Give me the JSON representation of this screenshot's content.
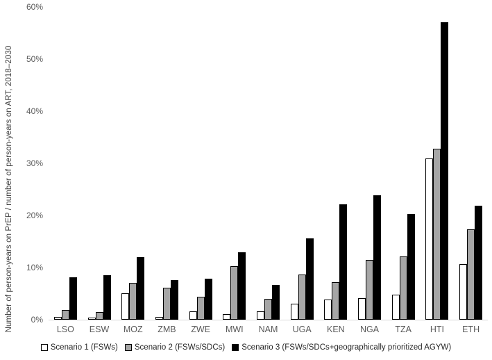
{
  "chart_data": {
    "type": "bar",
    "title": "",
    "xlabel": "",
    "ylabel": "Number of person-years on PrEP / number of person-years on ART, 2018–2030",
    "ylim": [
      0,
      60
    ],
    "ytick_step": 10,
    "ytick_labels": [
      "0%",
      "10%",
      "20%",
      "30%",
      "40%",
      "50%",
      "60%"
    ],
    "grid": false,
    "legend_position": "bottom",
    "axis_line_color": "#d9d9d9",
    "tick_label_color": "#595959",
    "categories": [
      "LSO",
      "ESW",
      "MOZ",
      "ZMB",
      "ZWE",
      "MWI",
      "NAM",
      "UGA",
      "KEN",
      "NGA",
      "TZA",
      "HTI",
      "ETH"
    ],
    "series": [
      {
        "name": "Scenario 1 (FSWs)",
        "fill": "#ffffff",
        "border": "#000000",
        "values": [
          0.5,
          0.4,
          5.0,
          0.5,
          1.6,
          1.1,
          1.6,
          3.1,
          3.9,
          4.1,
          4.8,
          30.9,
          10.7
        ]
      },
      {
        "name": "Scenario 2 (FSWs/SDCs)",
        "fill": "#a6a6a6",
        "border": "#000000",
        "values": [
          1.8,
          1.4,
          7.0,
          6.1,
          4.4,
          10.3,
          4.0,
          8.7,
          7.2,
          11.4,
          12.1,
          32.8,
          17.3
        ]
      },
      {
        "name": "Scenario 3 (FSWs/SDCs+geographically prioritized AGYW)",
        "fill": "#000000",
        "border": "#000000",
        "values": [
          8.2,
          8.5,
          12.0,
          7.6,
          7.9,
          12.9,
          6.7,
          15.6,
          22.1,
          23.9,
          20.3,
          57.0,
          21.9
        ]
      }
    ]
  }
}
